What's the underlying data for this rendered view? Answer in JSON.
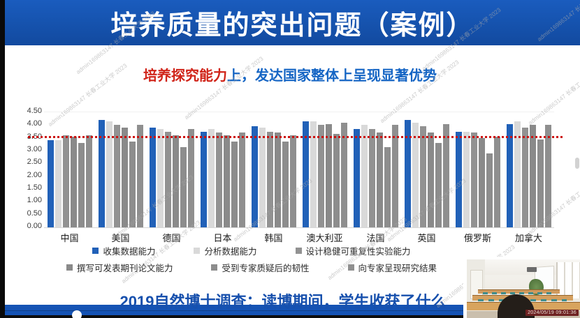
{
  "header": {
    "title": "培养质量的突出问题（案例）"
  },
  "subtitle": {
    "highlight": "培养探究能力",
    "rest": "上，发达国家整体上呈现显著优势"
  },
  "chart_data": {
    "type": "bar",
    "title": "",
    "categories": [
      "中国",
      "美国",
      "德国",
      "日本",
      "韩国",
      "澳大利亚",
      "法国",
      "英国",
      "俄罗斯",
      "加拿大"
    ],
    "series": [
      {
        "name": "收集数据能力",
        "color": "#2161b8",
        "values": [
          3.4,
          4.2,
          3.9,
          3.75,
          3.95,
          4.15,
          3.85,
          4.2,
          3.75,
          4.05
        ]
      },
      {
        "name": "分析数据能力",
        "color": "#d9d9d9",
        "values": [
          3.4,
          4.15,
          3.85,
          3.85,
          3.9,
          4.15,
          4.0,
          4.1,
          3.75,
          4.15
        ]
      },
      {
        "name": "设计稳健可重复性实验能力",
        "color": "#929292",
        "values": [
          3.6,
          4.0,
          3.75,
          3.7,
          3.75,
          4.0,
          3.85,
          3.95,
          3.7,
          3.9
        ]
      },
      {
        "name": "撰写可发表期刊论文能力",
        "color": "#8a8a8a",
        "values": [
          3.55,
          3.9,
          3.6,
          3.6,
          3.7,
          4.05,
          3.7,
          3.7,
          3.5,
          4.0
        ]
      },
      {
        "name": "受到专家质疑后的韧性",
        "color": "#8d8d8d",
        "values": [
          3.3,
          3.35,
          3.15,
          3.35,
          3.35,
          3.65,
          3.15,
          3.3,
          2.9,
          3.45
        ]
      },
      {
        "name": "向专家呈现研究结果",
        "color": "#8f8f8f",
        "values": [
          3.6,
          4.0,
          3.85,
          3.7,
          3.6,
          4.1,
          4.0,
          4.05,
          3.55,
          4.0
        ]
      }
    ],
    "ylim": [
      0,
      4.5
    ],
    "yticks": [
      "0.00",
      "0.50",
      "1.00",
      "1.50",
      "2.00",
      "2.50",
      "3.00",
      "3.50",
      "4.00",
      "4.50"
    ],
    "reference_line": {
      "value": 3.5,
      "color": "#cc1210",
      "style": "dotted"
    },
    "grid": false,
    "legend_position": "bottom"
  },
  "footer": {
    "caption": "2019自然博士调查：读博期间，学生收获了什么"
  },
  "webcam": {
    "timestamp": "2024/05/19 09:01:36"
  },
  "watermark": {
    "text": "admin169863147 长春工业大学 2023"
  },
  "colors": {
    "banner_blue": "#1553b4",
    "subtitle_red": "#d02318",
    "subtitle_blue": "#1565c4",
    "caption_blue": "#1750ad",
    "bar_blue": "#2161b8",
    "bar_light_gray": "#d9d9d9",
    "bar_gray": "#8d8d8d",
    "reference_red": "#cc1210"
  }
}
